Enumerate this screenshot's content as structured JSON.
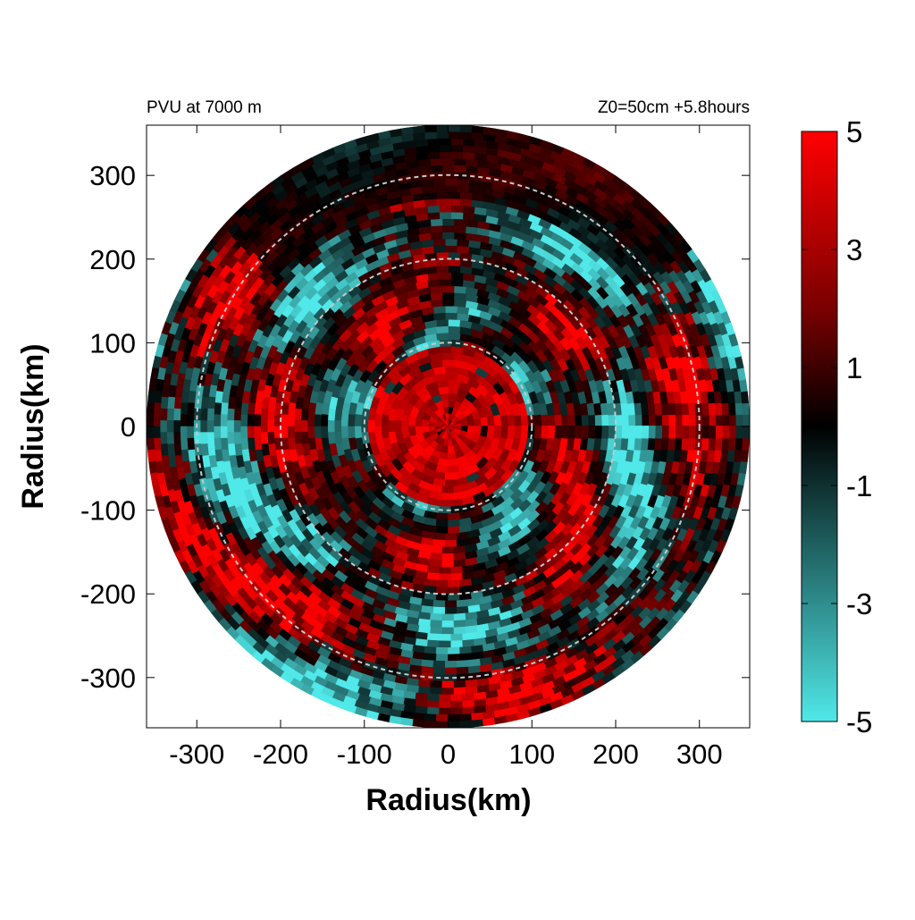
{
  "chart_data": {
    "type": "heatmap",
    "title_left": "PVU at  7000 m",
    "title_right": "Z0=50cm  +5.8hours",
    "xlabel": "Radius(km)",
    "ylabel": "Radius(km)",
    "xlim": [
      -360,
      360
    ],
    "ylim": [
      -360,
      360
    ],
    "x_ticks": [
      -300,
      -200,
      -100,
      0,
      100,
      200,
      300
    ],
    "y_ticks": [
      300,
      200,
      100,
      0,
      -100,
      -200,
      -300
    ],
    "data_radius_km": 360,
    "reference_circles_km": [
      100,
      200,
      300
    ],
    "grid": false,
    "colorbar": {
      "placement": "right",
      "min": -5,
      "max": 5,
      "ticks": [
        5,
        3,
        1,
        -1,
        -3,
        -5
      ],
      "colors": {
        "high": "#ff0000",
        "mid": "#000000",
        "low": "#50e8e8"
      }
    }
  }
}
